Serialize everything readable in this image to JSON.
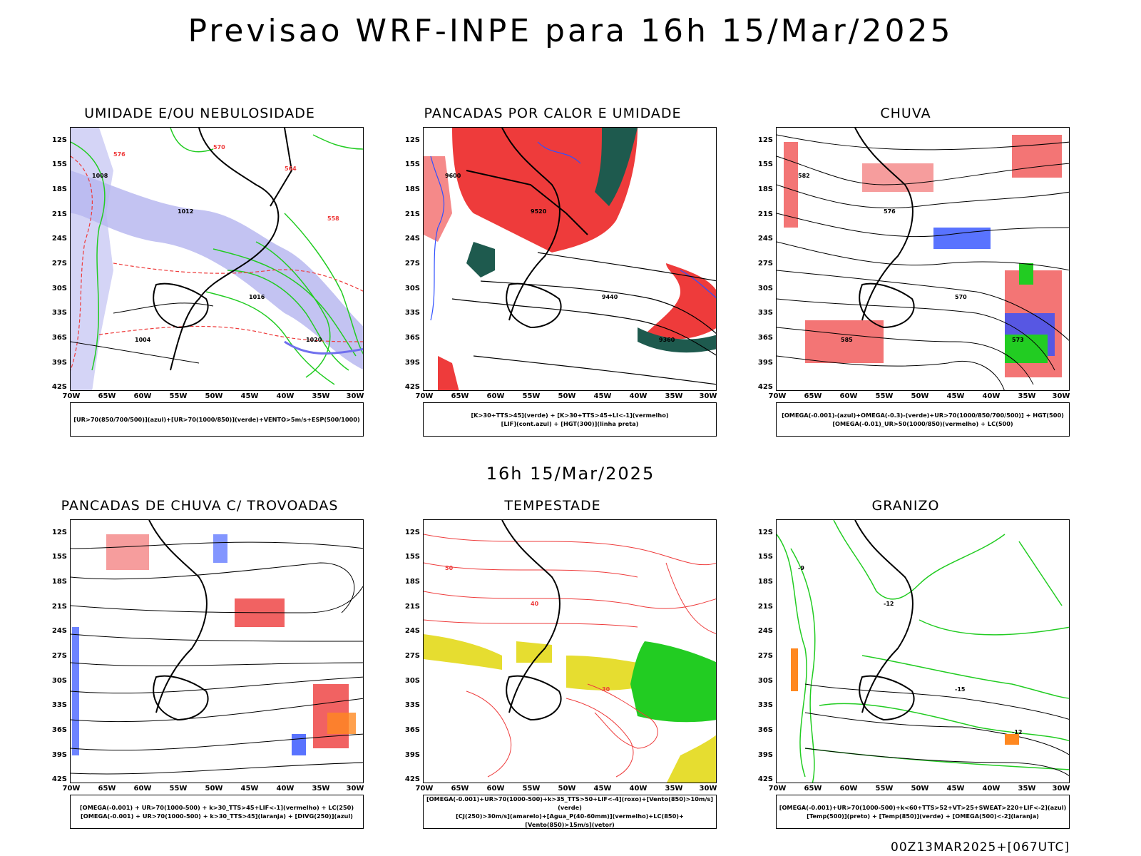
{
  "title": "Previsao WRF-INPE  para 16h 15/Mar/2025",
  "mid_title": "16h 15/Mar/2025",
  "footer": "00Z13MAR2025+[067UTC]",
  "axes": {
    "lat_labels": [
      "12S",
      "15S",
      "18S",
      "21S",
      "24S",
      "27S",
      "30S",
      "33S",
      "36S",
      "39S",
      "42S"
    ],
    "lon_labels": [
      "70W",
      "65W",
      "60W",
      "55W",
      "50W",
      "45W",
      "40W",
      "35W",
      "30W"
    ]
  },
  "colors": {
    "red": "#ee3b3b",
    "blue": "#3050ff",
    "green": "#22cc22",
    "lavender": "#b8b8f0",
    "darkgreen": "#1e5a4e",
    "yellow": "#e6dd30",
    "orange": "#ff8820"
  },
  "panels": [
    {
      "title": "UMIDADE E/OU NEBULOSIDADE",
      "legend": [
        "[UR>70(850/700/500)](azul)+[UR>70(1000/850)](verde)+VENTO>5m/s+ESP(500/1000)"
      ],
      "contour_labels": [
        "1008",
        "1012",
        "1016",
        "1020",
        "1004",
        "576",
        "570",
        "564",
        "558"
      ]
    },
    {
      "title": "PANCADAS POR CALOR E UMIDADE",
      "legend": [
        "[K>30+TTS>45](verde) + [K>30+TTS>45+LI<-1](vermelho)",
        "[LIF](cont.azul) + [HGT(300)](linha preta)"
      ],
      "contour_labels": [
        "9600",
        "9520",
        "9440",
        "9360"
      ]
    },
    {
      "title": "CHUVA",
      "legend": [
        "[OMEGA(-0.001)-(azul)+OMEGA(-0.3)-(verde)+UR>70(1000/850/700/500)] + HGT(500)",
        "[OMEGA(-0.01)_UR>50(1000/850)(vermelho) + LC(500)"
      ],
      "contour_labels": [
        "582",
        "576",
        "570",
        "573",
        "585"
      ]
    },
    {
      "title": "PANCADAS DE CHUVA C/ TROVOADAS",
      "legend": [
        "[OMEGA(-0.001) + UR>70(1000-500) + k>30_TTS>45+LIF<-1](vermelho) + LC(250)",
        "[OMEGA(-0.001) + UR>70(1000-500) + k>30_TTS>45](laranja) + [DIVG(250)](azul)"
      ],
      "contour_labels": []
    },
    {
      "title": "TEMPESTADE",
      "legend": [
        "[OMEGA(-0.001)+UR>70(1000-500)+k>35_TTS>50+LIF<-4](roxo)+[Vento(850)>10m/s](verde)",
        "[CJ(250)>30m/s](amarelo)+[Agua_P(40-60mm)](vermelho)+LC(850)+[Vento(850)>15m/s](vetor)"
      ],
      "contour_labels": [
        "50",
        "40",
        "30"
      ]
    },
    {
      "title": "GRANIZO",
      "legend": [
        "[OMEGA(-0.001)+UR>70(1000-500)+k<60+TTS>52+VT>25+SWEAT>220+LIF<-2](azul)",
        "[Temp(500)](preto) + [Temp(850)](verde) + [OMEGA(500)<-2](laranja)"
      ],
      "contour_labels": [
        "-9",
        "-12",
        "-15",
        "-12"
      ]
    }
  ]
}
